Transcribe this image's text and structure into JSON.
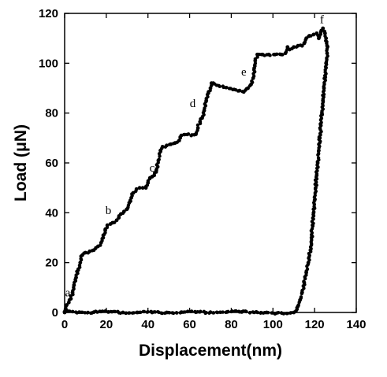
{
  "chart_data": {
    "type": "scatter",
    "title": "",
    "xlabel": "Displacement(nm)",
    "ylabel": "Load (μN)",
    "xlim": [
      0,
      140
    ],
    "ylim": [
      0,
      120
    ],
    "x_ticks": [
      "0",
      "20",
      "40",
      "60",
      "80",
      "100",
      "120",
      "140"
    ],
    "y_ticks": [
      "0",
      "20",
      "40",
      "60",
      "80",
      "100",
      "120"
    ],
    "grid": false,
    "legend": "none",
    "marker_color": "#000000",
    "annotations": [
      {
        "text": "a",
        "x": 1.5,
        "y": 6.5
      },
      {
        "text": "b",
        "x": 21,
        "y": 39.5
      },
      {
        "text": "c",
        "x": 42,
        "y": 56.5
      },
      {
        "text": "d",
        "x": 61.5,
        "y": 82.5
      },
      {
        "text": "e",
        "x": 86,
        "y": 95
      },
      {
        "text": "f",
        "x": 123.5,
        "y": 116
      }
    ],
    "series": [
      {
        "values_description_free": true,
        "points": [
          [
            0,
            0
          ],
          [
            0.5,
            1.5
          ],
          [
            1,
            3
          ],
          [
            2,
            4
          ],
          [
            3,
            5.5
          ],
          [
            3.8,
            8
          ],
          [
            4.5,
            11
          ],
          [
            5.5,
            14
          ],
          [
            6.5,
            17
          ],
          [
            7.5,
            20
          ],
          [
            8.5,
            23
          ],
          [
            10,
            24
          ],
          [
            12,
            24.5
          ],
          [
            14,
            25
          ],
          [
            16,
            26.5
          ],
          [
            17.5,
            28
          ],
          [
            18.5,
            30
          ],
          [
            19.5,
            33
          ],
          [
            20.5,
            35
          ],
          [
            22,
            35.5
          ],
          [
            23,
            36
          ],
          [
            25,
            37
          ],
          [
            26,
            38
          ],
          [
            27,
            39.5
          ],
          [
            28.5,
            40.5
          ],
          [
            30,
            41.5
          ],
          [
            31,
            44
          ],
          [
            32,
            46
          ],
          [
            33,
            48
          ],
          [
            34.5,
            49.5
          ],
          [
            36,
            50
          ],
          [
            37.5,
            50
          ],
          [
            39,
            50
          ],
          [
            40,
            52
          ],
          [
            41,
            54
          ],
          [
            42,
            54.5
          ],
          [
            43,
            55
          ],
          [
            44,
            57
          ],
          [
            45,
            61
          ],
          [
            46,
            65
          ],
          [
            47,
            66.5
          ],
          [
            49,
            67
          ],
          [
            51,
            67.5
          ],
          [
            53,
            68
          ],
          [
            55,
            69
          ],
          [
            56,
            71
          ],
          [
            63,
            71.5
          ],
          [
            64,
            74
          ],
          [
            65,
            76.5
          ],
          [
            66,
            78
          ],
          [
            67,
            81
          ],
          [
            68,
            85
          ],
          [
            69,
            88
          ],
          [
            70,
            90
          ],
          [
            70.5,
            92
          ],
          [
            84,
            89
          ],
          [
            86,
            88.5
          ],
          [
            88,
            90
          ],
          [
            89.5,
            91.5
          ],
          [
            90.5,
            94
          ],
          [
            91,
            98
          ],
          [
            91.5,
            101
          ],
          [
            92.5,
            103.5
          ],
          [
            95,
            103.5
          ],
          [
            98,
            103.5
          ],
          [
            101,
            103.5
          ],
          [
            104,
            103.5
          ],
          [
            106,
            104
          ],
          [
            107,
            106.5
          ],
          [
            108,
            105.5
          ],
          [
            110,
            106.5
          ],
          [
            112,
            107
          ],
          [
            114,
            107
          ],
          [
            115,
            108
          ],
          [
            116,
            110
          ],
          [
            117.5,
            111
          ],
          [
            119.5,
            111.5
          ],
          [
            121,
            112
          ],
          [
            122,
            110
          ],
          [
            123,
            112.5
          ],
          [
            124,
            114
          ],
          [
            125,
            112
          ],
          [
            125.5,
            110
          ],
          [
            126,
            107
          ],
          [
            126,
            104
          ],
          [
            125.5,
            100
          ],
          [
            125,
            95
          ],
          [
            124.5,
            90
          ],
          [
            124,
            85
          ],
          [
            123.5,
            80
          ],
          [
            123,
            75
          ],
          [
            122.5,
            70
          ],
          [
            122,
            65
          ],
          [
            121.5,
            60
          ],
          [
            121,
            55
          ],
          [
            120.5,
            50
          ],
          [
            120,
            45
          ],
          [
            119.5,
            40
          ],
          [
            119,
            35
          ],
          [
            118.5,
            30
          ],
          [
            118,
            25
          ],
          [
            117,
            20
          ],
          [
            116,
            16
          ],
          [
            115,
            12
          ],
          [
            114,
            8
          ],
          [
            113,
            5
          ],
          [
            112,
            2.5
          ],
          [
            111,
            0.5
          ],
          [
            110,
            0
          ],
          [
            101,
            -0.5
          ],
          [
            97,
            0
          ],
          [
            92,
            0.2
          ],
          [
            85,
            0.2
          ],
          [
            78,
            0.2
          ],
          [
            70,
            0.1
          ],
          [
            63,
            0.1
          ],
          [
            56,
            0.1
          ],
          [
            49,
            0
          ],
          [
            42,
            0
          ],
          [
            35,
            0
          ],
          [
            28,
            0
          ],
          [
            21,
            0.2
          ],
          [
            14,
            0.1
          ],
          [
            7,
            0.1
          ],
          [
            0,
            0.3
          ]
        ]
      }
    ]
  }
}
